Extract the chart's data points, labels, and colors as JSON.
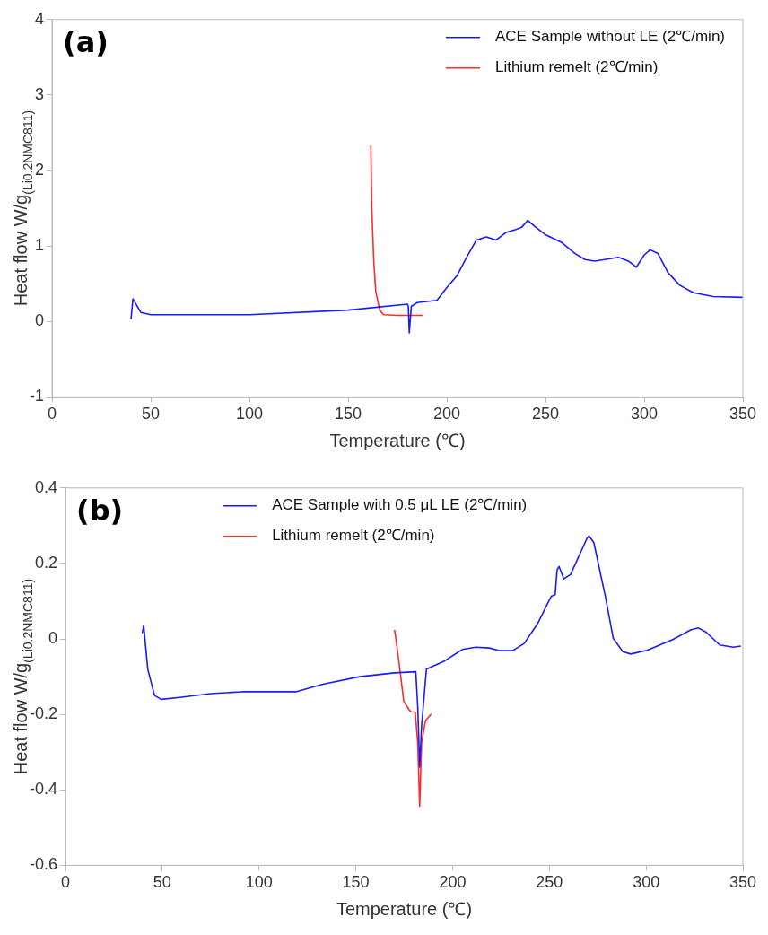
{
  "chart_data": [
    {
      "type": "line",
      "xlabel": "Temperature (℃)",
      "ylabel": "Heat flow W/g$_{(Li}$$_{0.2}$$_{NMC811)}$",
      "annotations": [
        "(a)"
      ],
      "xlim": [
        0,
        350
      ],
      "xticks": [
        0,
        50,
        100,
        150,
        200,
        250,
        300,
        350
      ],
      "ylim": [
        -1,
        4
      ],
      "yticks": [
        -1,
        0,
        1,
        2,
        3,
        4
      ],
      "grid": false,
      "legend": "top right",
      "series": [
        {
          "name": "ACE Sample without LE (2℃/min)",
          "color": "#1a1aff",
          "x": [
            40,
            41,
            45,
            50,
            100,
            150,
            180,
            180.5,
            181,
            182,
            185,
            195,
            200,
            205,
            210,
            215,
            220,
            225,
            230,
            235,
            238,
            241,
            245,
            250,
            258,
            265,
            270,
            275,
            280,
            287,
            292,
            296,
            300,
            303,
            307,
            312,
            318,
            325,
            335,
            350
          ],
          "values": [
            0.03,
            0.3,
            0.12,
            0.09,
            0.09,
            0.15,
            0.23,
            0.2,
            -0.15,
            0.2,
            0.25,
            0.28,
            0.45,
            0.6,
            0.85,
            1.08,
            1.12,
            1.08,
            1.18,
            1.22,
            1.25,
            1.34,
            1.25,
            1.15,
            1.05,
            0.9,
            0.82,
            0.8,
            0.82,
            0.85,
            0.8,
            0.72,
            0.88,
            0.95,
            0.9,
            0.65,
            0.48,
            0.38,
            0.33,
            0.32
          ]
        },
        {
          "name": "Lithium remelt (2℃/min)",
          "color": "#ff2a2a",
          "x": [
            161.5,
            162,
            163,
            164,
            166,
            168,
            175,
            188
          ],
          "values": [
            2.33,
            1.5,
            0.8,
            0.4,
            0.15,
            0.09,
            0.08,
            0.08
          ]
        }
      ]
    },
    {
      "type": "line",
      "xlabel": "Temperature (℃)",
      "ylabel": "Heat flow W/g$_{(Li}$$_{0.2}$$_{NMC811)}$",
      "annotations": [
        "(b)"
      ],
      "xlim": [
        0,
        350
      ],
      "xticks": [
        0,
        50,
        100,
        150,
        200,
        250,
        300,
        350
      ],
      "ylim": [
        -0.6,
        0.4
      ],
      "yticks": [
        -0.6,
        -0.4,
        -0.2,
        0,
        0.2,
        0.4
      ],
      "grid": false,
      "legend": "top",
      "series": [
        {
          "name": "ACE Sample with 0.5 μL LE (2℃/min)",
          "color": "#1a1aff",
          "x": [
            39.7,
            40.4,
            40.9,
            42.5,
            46,
            49.5,
            59,
            75,
            91.5,
            119,
            133,
            152,
            170,
            181,
            182,
            183,
            184,
            186.5,
            196,
            205,
            212,
            219,
            224,
            231,
            237,
            244,
            249,
            251,
            253,
            254,
            255,
            257.5,
            261,
            269.5,
            270.5,
            273,
            279,
            283,
            288,
            292,
            300.5,
            314,
            323,
            327,
            331,
            338,
            345,
            349
          ],
          "values": [
            0.015,
            0.036,
            0.008,
            -0.08,
            -0.15,
            -0.16,
            -0.155,
            -0.145,
            -0.14,
            -0.14,
            -0.12,
            -0.1,
            -0.09,
            -0.087,
            -0.18,
            -0.34,
            -0.23,
            -0.08,
            -0.058,
            -0.028,
            -0.022,
            -0.024,
            -0.031,
            -0.031,
            -0.012,
            0.041,
            0.093,
            0.113,
            0.117,
            0.183,
            0.192,
            0.159,
            0.171,
            0.267,
            0.273,
            0.255,
            0.111,
            0.002,
            -0.034,
            -0.04,
            -0.03,
            -0.001,
            0.024,
            0.029,
            0.018,
            -0.016,
            -0.022,
            -0.019
          ]
        },
        {
          "name": "Lithium remelt (2℃/min)",
          "color": "#ff2a2a",
          "x": [
            170,
            170.5,
            172.5,
            174.8,
            178.3,
            180.7,
            182,
            183,
            184,
            186,
            189
          ],
          "values": [
            0.024,
            0.008,
            -0.07,
            -0.166,
            -0.193,
            -0.194,
            -0.275,
            -0.443,
            -0.275,
            -0.217,
            -0.199
          ]
        }
      ]
    }
  ]
}
